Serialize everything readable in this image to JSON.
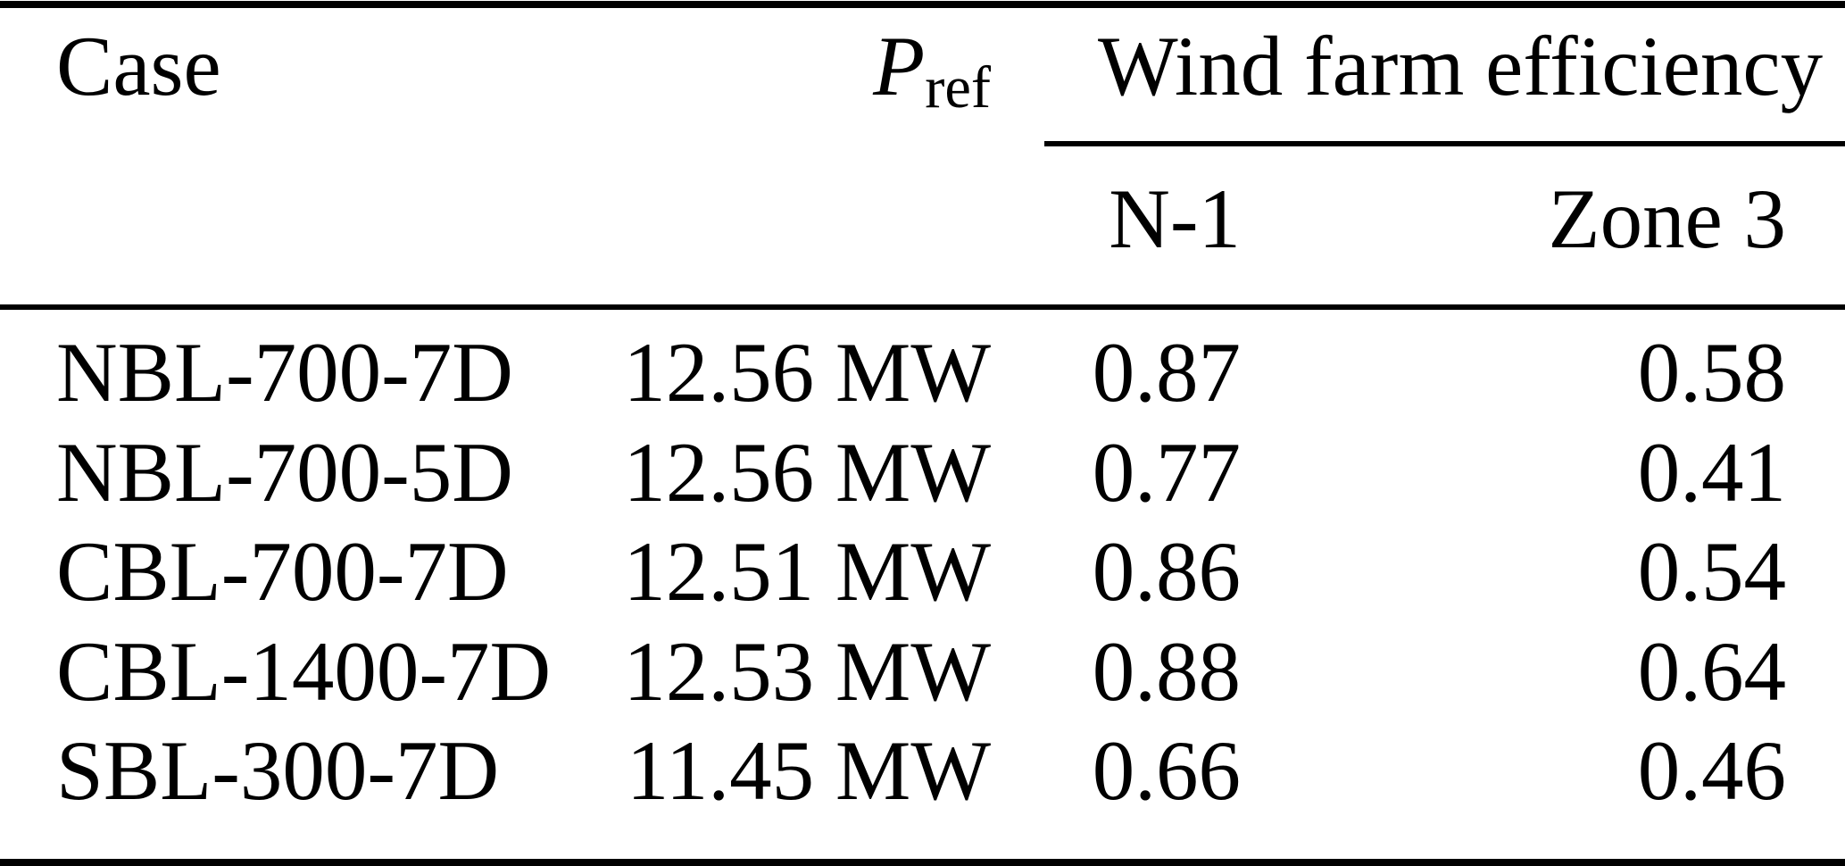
{
  "table": {
    "header": {
      "case": "Case",
      "pref_symbol": "P",
      "pref_subscript": "ref",
      "group": "Wind farm efficiency",
      "sub_n1": "N-1",
      "sub_zone3": "Zone 3"
    },
    "rows": [
      {
        "case": "NBL-700-7D",
        "pref": "12.56 MW",
        "n1": "0.87",
        "zone3": "0.58"
      },
      {
        "case": "NBL-700-5D",
        "pref": "12.56 MW",
        "n1": "0.77",
        "zone3": "0.41"
      },
      {
        "case": "CBL-700-7D",
        "pref": "12.51 MW",
        "n1": "0.86",
        "zone3": "0.54"
      },
      {
        "case": "CBL-1400-7D",
        "pref": "12.53 MW",
        "n1": "0.88",
        "zone3": "0.64"
      },
      {
        "case": "SBL-300-7D",
        "pref": "11.45 MW",
        "n1": "0.66",
        "zone3": "0.46"
      }
    ]
  },
  "colors": {
    "text": "#000000",
    "background": "#ffffff",
    "rule": "#000000"
  }
}
